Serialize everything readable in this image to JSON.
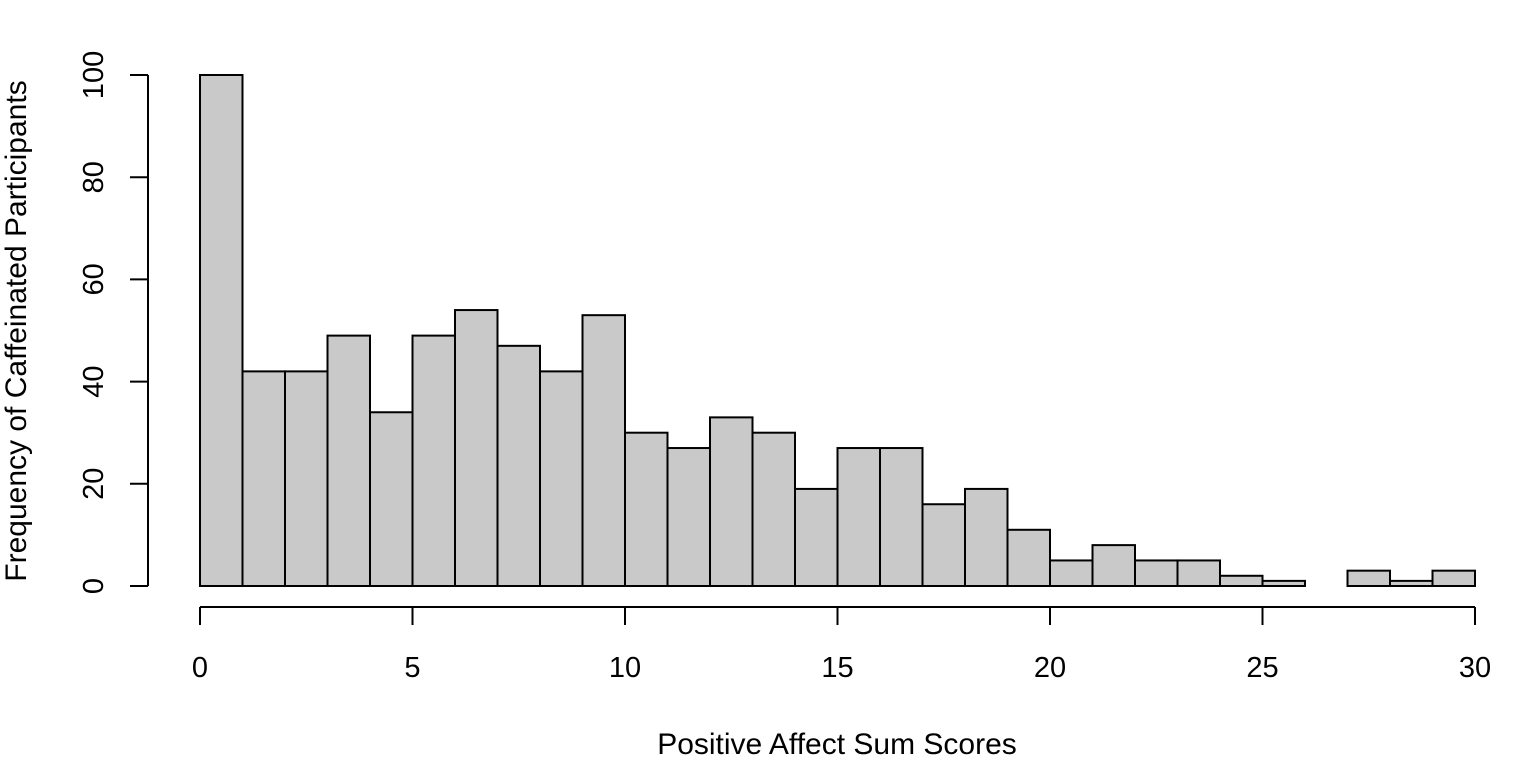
{
  "chart_data": {
    "type": "histogram",
    "title": "",
    "xlabel": "Positive Affect Sum Scores",
    "ylabel": "Frequency of Caffeinated Participants",
    "bin_edges": [
      0,
      1,
      2,
      3,
      4,
      5,
      6,
      7,
      8,
      9,
      10,
      11,
      12,
      13,
      14,
      15,
      16,
      17,
      18,
      19,
      20,
      21,
      22,
      23,
      24,
      25,
      26,
      27,
      28,
      29,
      30
    ],
    "values": [
      100,
      42,
      42,
      49,
      34,
      49,
      54,
      47,
      42,
      53,
      30,
      27,
      33,
      30,
      19,
      27,
      27,
      16,
      19,
      11,
      5,
      8,
      5,
      5,
      2,
      1,
      0,
      3,
      1,
      3
    ],
    "xlim": [
      0,
      30
    ],
    "ylim": [
      0,
      100
    ],
    "x_ticks": [
      0,
      5,
      10,
      15,
      20,
      25,
      30
    ],
    "y_ticks": [
      0,
      20,
      40,
      60,
      80,
      100
    ],
    "x_tick_labels": [
      "0",
      "5",
      "10",
      "15",
      "20",
      "25",
      "30"
    ],
    "y_tick_labels": [
      "0",
      "20",
      "40",
      "60",
      "80",
      "100"
    ],
    "bar_fill": "#c9c9c9",
    "bar_stroke": "#000000",
    "grid": false,
    "legend": "none"
  }
}
